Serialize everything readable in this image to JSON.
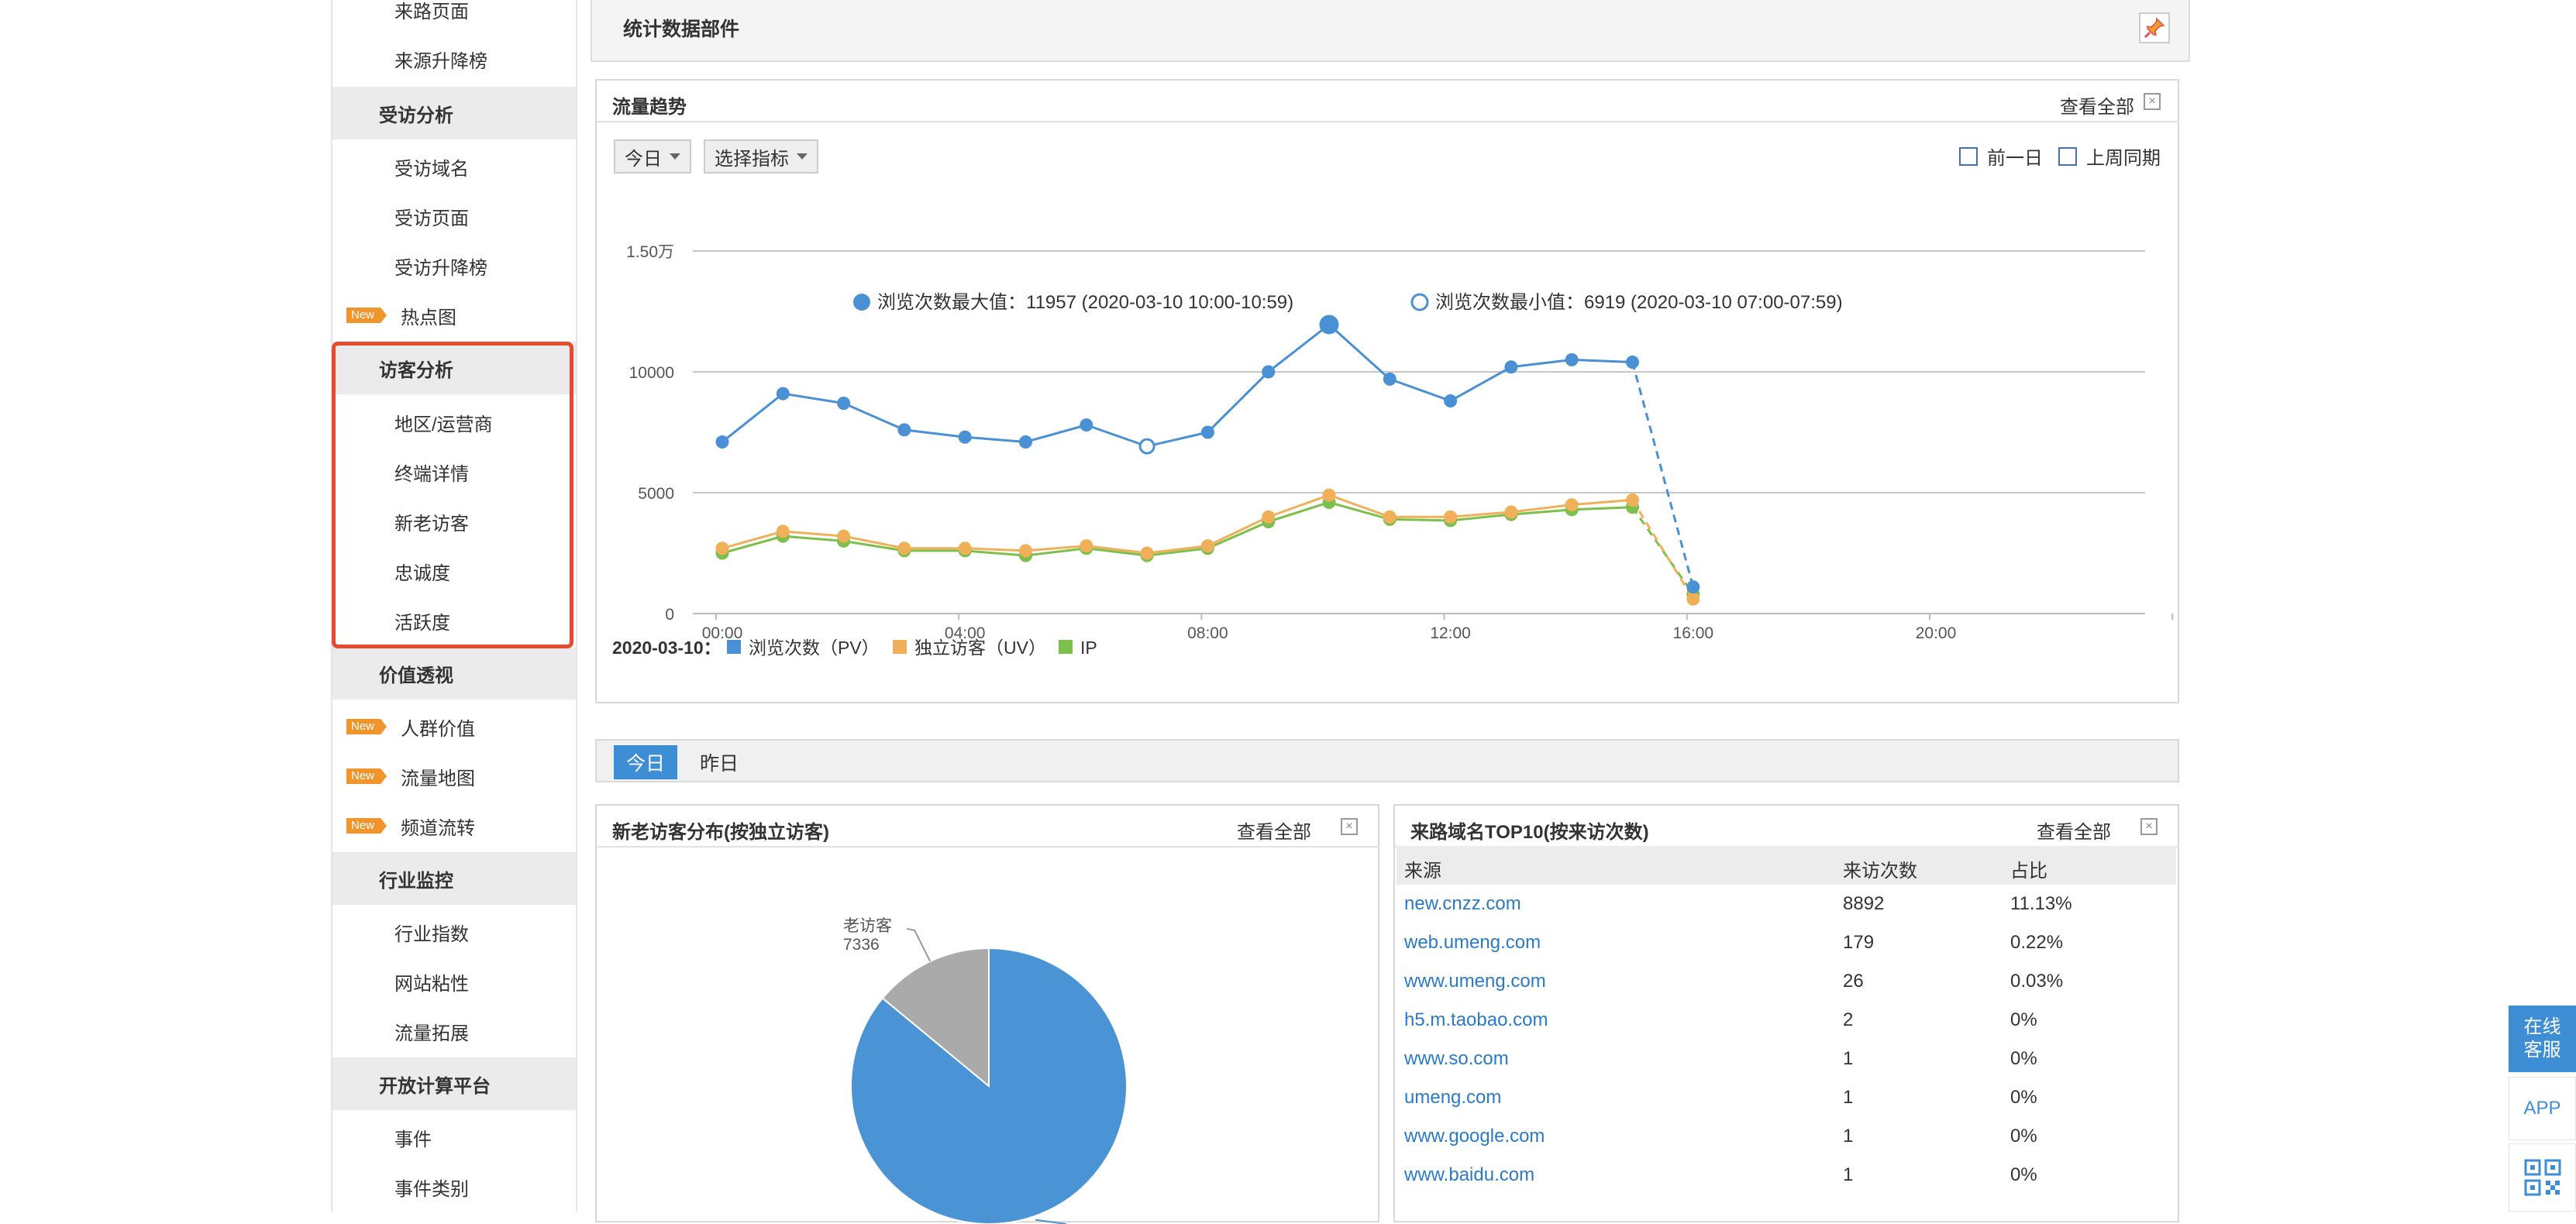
{
  "sidebar": {
    "items": [
      {
        "label": "来路页面",
        "type": "item"
      },
      {
        "label": "来源升降榜",
        "type": "item"
      },
      {
        "label": "受访分析",
        "type": "section"
      },
      {
        "label": "受访域名",
        "type": "item"
      },
      {
        "label": "受访页面",
        "type": "item"
      },
      {
        "label": "受访升降榜",
        "type": "item"
      },
      {
        "label": "热点图",
        "type": "new"
      },
      {
        "label": "访客分析",
        "type": "section"
      },
      {
        "label": "地区/运营商",
        "type": "item"
      },
      {
        "label": "终端详情",
        "type": "item"
      },
      {
        "label": "新老访客",
        "type": "item"
      },
      {
        "label": "忠诚度",
        "type": "item"
      },
      {
        "label": "活跃度",
        "type": "item"
      },
      {
        "label": "价值透视",
        "type": "section"
      },
      {
        "label": "人群价值",
        "type": "new"
      },
      {
        "label": "流量地图",
        "type": "new"
      },
      {
        "label": "频道流转",
        "type": "new"
      },
      {
        "label": "行业监控",
        "type": "section"
      },
      {
        "label": "行业指数",
        "type": "item"
      },
      {
        "label": "网站粘性",
        "type": "item"
      },
      {
        "label": "流量拓展",
        "type": "item"
      },
      {
        "label": "开放计算平台",
        "type": "section"
      },
      {
        "label": "事件",
        "type": "item"
      },
      {
        "label": "事件类别",
        "type": "item"
      }
    ],
    "new_badge": "New",
    "highlight_color": "#e84a2f"
  },
  "header": {
    "title": "统计数据部件"
  },
  "trend_panel": {
    "title": "流量趋势",
    "view_all": "查看全部",
    "dropdown_day": "今日",
    "dropdown_metric": "选择指标",
    "checkbox_prev_day": "前一日",
    "checkbox_last_week": "上周同期",
    "max_label": "浏览次数最大值：11957 (2020-03-10 10:00-10:59)",
    "min_label": "浏览次数最小值：6919 (2020-03-10 07:00-07:59)",
    "legend_date": "2020-03-10：",
    "legend_pv": "浏览次数（PV）",
    "legend_uv": "独立访客（UV）",
    "legend_ip": "IP"
  },
  "chart_data": {
    "type": "line",
    "x": [
      "00:00",
      "01:00",
      "02:00",
      "03:00",
      "04:00",
      "05:00",
      "06:00",
      "07:00",
      "08:00",
      "09:00",
      "10:00",
      "11:00",
      "12:00",
      "13:00",
      "14:00",
      "15:00",
      "16:00"
    ],
    "x_tick_labels": [
      "00:00",
      "04:00",
      "08:00",
      "12:00",
      "16:00",
      "20:00"
    ],
    "y_tick_labels": [
      "0",
      "5000",
      "10000",
      "1.50万"
    ],
    "ylim": [
      0,
      15000
    ],
    "xlim": [
      0,
      24
    ],
    "grid": true,
    "legend_position": "bottom-left",
    "series": [
      {
        "name": "浏览次数（PV）",
        "color": "#4a90d4",
        "values": [
          7100,
          9100,
          8700,
          7600,
          7300,
          7100,
          7800,
          6919,
          7500,
          10000,
          11957,
          9700,
          8800,
          10200,
          10500,
          10400,
          1100
        ]
      },
      {
        "name": "独立访客（UV）",
        "color": "#f0b05a",
        "values": [
          2700,
          3400,
          3200,
          2700,
          2700,
          2600,
          2800,
          2500,
          2800,
          4000,
          4900,
          4000,
          4000,
          4200,
          4500,
          4700,
          600
        ]
      },
      {
        "name": "IP",
        "color": "#7cc04b",
        "values": [
          2500,
          3200,
          3000,
          2600,
          2600,
          2400,
          2700,
          2400,
          2700,
          3800,
          4600,
          3900,
          3850,
          4100,
          4300,
          4400,
          800
        ]
      }
    ],
    "dashed_last_segment": true
  },
  "tabs": {
    "today": "今日",
    "yesterday": "昨日"
  },
  "visitor_panel": {
    "title": "新老访客分布(按独立访客)",
    "view_all": "查看全部",
    "old_label": "老访客",
    "old_value": "7336",
    "old_fraction": 0.14,
    "colors": {
      "new": "#4a94d6",
      "old": "#aaaaaa"
    }
  },
  "referrer_panel": {
    "title": "来路域名TOP10(按来访次数)",
    "view_all": "查看全部",
    "columns": [
      "来源",
      "来访次数",
      "占比"
    ],
    "rows": [
      {
        "source": "new.cnzz.com",
        "visits": "8892",
        "pct": "11.13%"
      },
      {
        "source": "web.umeng.com",
        "visits": "179",
        "pct": "0.22%"
      },
      {
        "source": "www.umeng.com",
        "visits": "26",
        "pct": "0.03%"
      },
      {
        "source": "h5.m.taobao.com",
        "visits": "2",
        "pct": "0%"
      },
      {
        "source": "www.so.com",
        "visits": "1",
        "pct": "0%"
      },
      {
        "source": "umeng.com",
        "visits": "1",
        "pct": "0%"
      },
      {
        "source": "www.google.com",
        "visits": "1",
        "pct": "0%"
      },
      {
        "source": "www.baidu.com",
        "visits": "1",
        "pct": "0%"
      }
    ]
  },
  "floating": {
    "service_line1": "在线",
    "service_line2": "客服",
    "app": "APP"
  }
}
